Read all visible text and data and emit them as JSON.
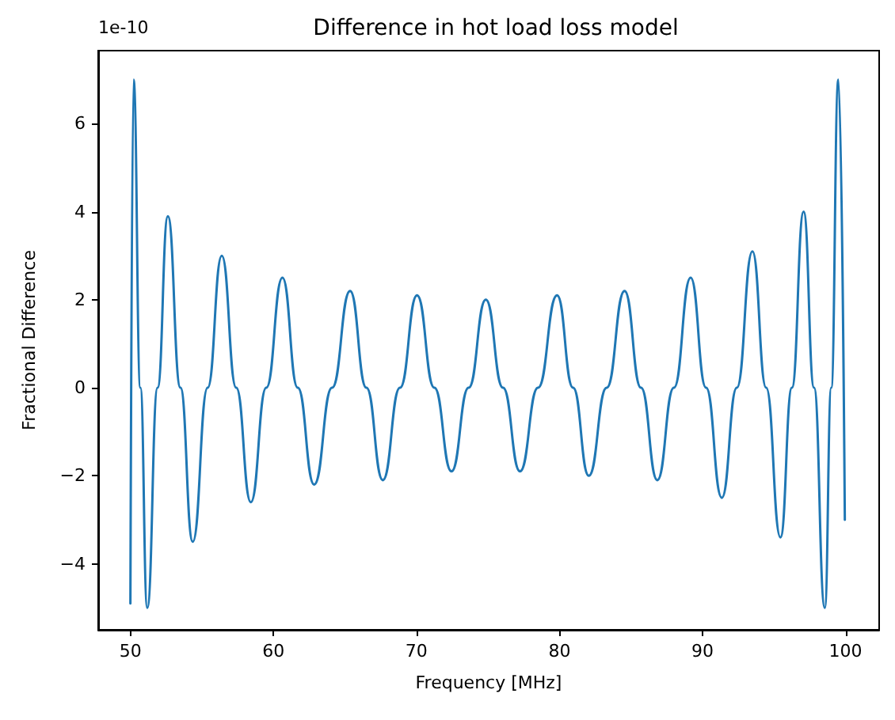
{
  "chart_data": {
    "type": "line",
    "title": "Difference in hot load loss model",
    "xlabel": "Frequency [MHz]",
    "ylabel": "Fractional Difference",
    "annotations": [
      "1e-10"
    ],
    "x": [
      50.0,
      50.22,
      50.7,
      51.18,
      51.9,
      52.62,
      53.5,
      54.36,
      55.4,
      56.39,
      57.4,
      58.42,
      59.5,
      60.63,
      61.7,
      62.85,
      64.1,
      65.36,
      66.5,
      67.65,
      68.85,
      70.04,
      71.25,
      72.45,
      73.65,
      74.85,
      76.05,
      77.24,
      78.5,
      79.83,
      80.95,
      82.05,
      83.3,
      84.55,
      85.7,
      86.84,
      88.0,
      89.17,
      90.25,
      91.35,
      92.4,
      93.49,
      94.45,
      95.45,
      96.25,
      97.07,
      97.8,
      98.55,
      99.0,
      99.5,
      99.95
    ],
    "series": [
      {
        "color": "#1f77b4",
        "values": [
          -4.9,
          7.0,
          0,
          -5.0,
          0,
          3.9,
          0,
          -3.5,
          0,
          3.0,
          0,
          -2.6,
          0,
          2.5,
          0,
          -2.2,
          0,
          2.2,
          0,
          -2.1,
          0,
          2.1,
          0,
          -1.9,
          0,
          2.0,
          0,
          -1.9,
          0,
          2.1,
          0,
          -2.0,
          0,
          2.2,
          0,
          -2.1,
          0,
          2.5,
          0,
          -2.5,
          0,
          3.1,
          0,
          -3.4,
          0,
          4.0,
          0,
          -5.0,
          0,
          7.0,
          -3.0
        ]
      }
    ],
    "xlim": [
      47.75,
      102.35
    ],
    "xticks": [
      50,
      60,
      70,
      80,
      90,
      100
    ],
    "ylim": [
      -5.5,
      7.66
    ],
    "yticks": [
      -4,
      -2,
      0,
      2,
      4,
      6
    ],
    "grid": false,
    "marker": "none",
    "line_style": "solid"
  }
}
